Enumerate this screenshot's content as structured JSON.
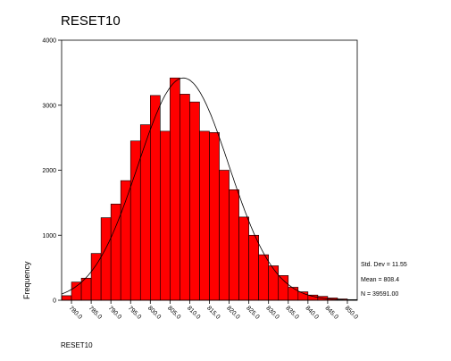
{
  "chart_data": {
    "type": "bar",
    "title": "RESET10",
    "xlabel": "RESET10",
    "ylabel": "Frequency",
    "ylim": [
      0,
      4000
    ],
    "y_ticks": [
      "0",
      "1000",
      "2000",
      "3000",
      "4000"
    ],
    "x_tick_labels": [
      "780.0",
      "785.0",
      "790.0",
      "795.0",
      "800.0",
      "805.0",
      "810.0",
      "815.0",
      "820.0",
      "825.0",
      "830.0",
      "835.0",
      "840.0",
      "845.0",
      "850.0"
    ],
    "bin_start": 777.5,
    "bin_width": 2.5,
    "values": [
      70,
      280,
      340,
      720,
      1270,
      1480,
      1840,
      2450,
      2700,
      3150,
      2600,
      3420,
      3170,
      3050,
      2600,
      2580,
      2000,
      1700,
      1280,
      1000,
      700,
      530,
      380,
      200,
      130,
      80,
      60,
      35,
      20,
      10
    ],
    "bar_color": "#ff0000",
    "normal_curve": {
      "mean": 808.4,
      "std_dev": 11.55,
      "n": 39591
    },
    "stats": {
      "std_dev": "Std. Dev = 11.55",
      "mean": "Mean = 808.4",
      "n": "N = 39591.00"
    },
    "grid": false,
    "legend": "none"
  }
}
